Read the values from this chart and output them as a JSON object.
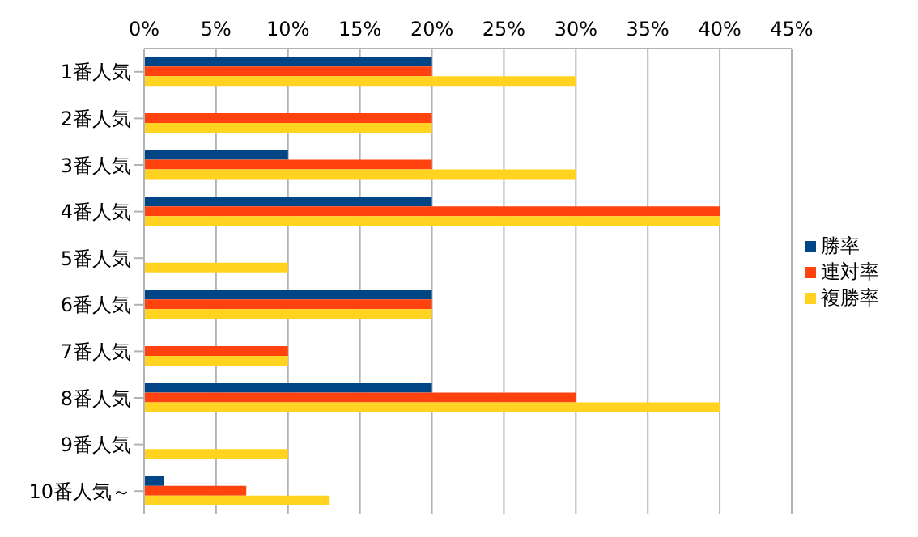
{
  "chart_data": {
    "type": "bar",
    "orientation": "horizontal",
    "categories": [
      "1番人気",
      "2番人気",
      "3番人気",
      "4番人気",
      "5番人気",
      "6番人気",
      "7番人気",
      "8番人気",
      "9番人気",
      "10番人気～"
    ],
    "series": [
      {
        "name": "勝率",
        "color": "#004586",
        "values": [
          20,
          0,
          10,
          20,
          0,
          20,
          0,
          20,
          0,
          1.4
        ]
      },
      {
        "name": "連対率",
        "color": "#ff420e",
        "values": [
          20,
          20,
          20,
          40,
          0,
          20,
          10,
          30,
          0,
          7.1
        ]
      },
      {
        "name": "複勝率",
        "color": "#ffd320",
        "values": [
          30,
          20,
          30,
          40,
          10,
          20,
          10,
          40,
          10,
          12.9
        ]
      }
    ],
    "xlim": [
      0,
      45
    ],
    "xticks": [
      {
        "value": 0,
        "label": "0%"
      },
      {
        "value": 5,
        "label": "5%"
      },
      {
        "value": 10,
        "label": "10%"
      },
      {
        "value": 15,
        "label": "15%"
      },
      {
        "value": 20,
        "label": "20%"
      },
      {
        "value": 25,
        "label": "25%"
      },
      {
        "value": 30,
        "label": "30%"
      },
      {
        "value": 35,
        "label": "35%"
      },
      {
        "value": 40,
        "label": "40%"
      },
      {
        "value": 45,
        "label": "45%"
      }
    ],
    "grid": "x",
    "legend": "right"
  }
}
